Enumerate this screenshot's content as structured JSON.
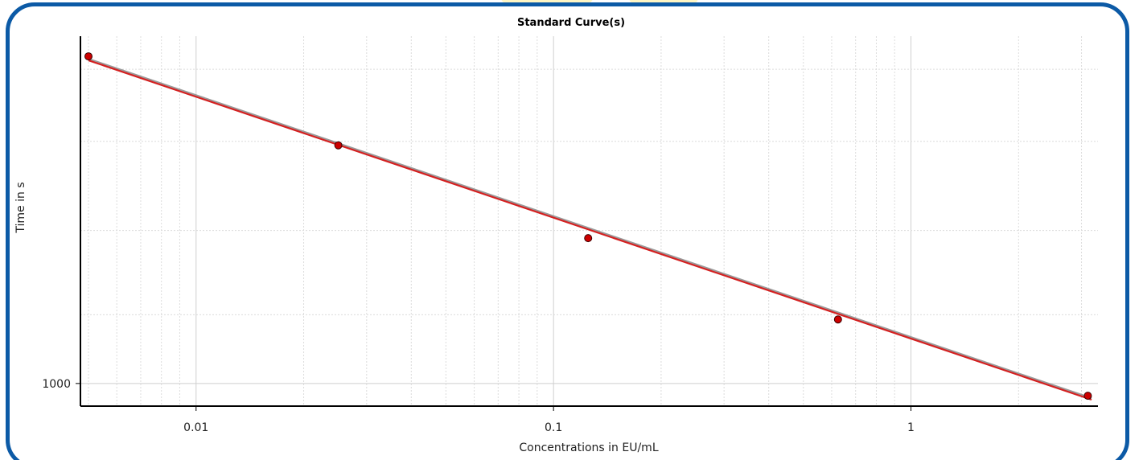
{
  "chart_data": {
    "type": "scatter",
    "title": "Standard Curve(s)",
    "xlabel": "Concentrations in EU/mL",
    "ylabel": "Time in s",
    "x_scale": "log",
    "y_scale": "log",
    "xlim": [
      0.005,
      3.2
    ],
    "ylim": [
      960,
      2500
    ],
    "x_ticks": [
      {
        "value": 0.01,
        "label": "0.01"
      },
      {
        "value": 0.1,
        "label": "0.1"
      },
      {
        "value": 1,
        "label": "1"
      }
    ],
    "y_ticks": [
      {
        "value": 1000,
        "label": "1000"
      }
    ],
    "grid": true,
    "colors": {
      "points": "#cc0000",
      "fit": "#d42020",
      "fit_shadow": "#9a9a9a",
      "grid": "#d8d8d8",
      "frame": "#0c5aa6"
    },
    "series": [
      {
        "points": [
          {
            "x": 0.005,
            "y": 2380
          },
          {
            "x": 0.025,
            "y": 1880
          },
          {
            "x": 0.125,
            "y": 1470
          },
          {
            "x": 0.625,
            "y": 1185
          },
          {
            "x": 3.125,
            "y": 968
          }
        ]
      }
    ],
    "fit_line": [
      {
        "x": 0.005,
        "y": 2360
      },
      {
        "x": 3.2,
        "y": 960
      }
    ]
  }
}
